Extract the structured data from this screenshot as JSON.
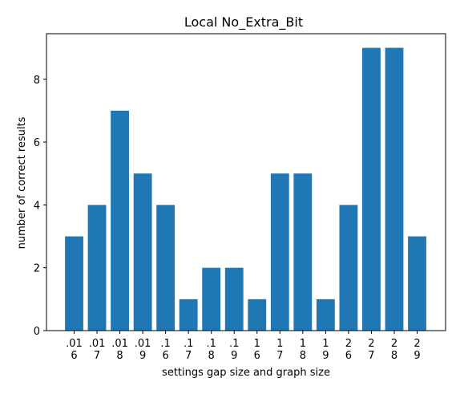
{
  "chart_data": {
    "type": "bar",
    "title": "Local No_Extra_Bit",
    "xlabel": "settings gap size and graph size",
    "ylabel": "number of correct results",
    "categories": [
      [
        ".01",
        "6"
      ],
      [
        ".01",
        "7"
      ],
      [
        ".01",
        "8"
      ],
      [
        ".01",
        "9"
      ],
      [
        ".1",
        "6"
      ],
      [
        ".1",
        "7"
      ],
      [
        ".1",
        "8"
      ],
      [
        ".1",
        "9"
      ],
      [
        "1",
        "6"
      ],
      [
        "1",
        "7"
      ],
      [
        "1",
        "8"
      ],
      [
        "1",
        "9"
      ],
      [
        "2",
        "6"
      ],
      [
        "2",
        "7"
      ],
      [
        "2",
        "8"
      ],
      [
        "2",
        "9"
      ]
    ],
    "values": [
      3,
      4,
      7,
      5,
      4,
      1,
      2,
      2,
      1,
      5,
      5,
      1,
      4,
      9,
      9,
      3
    ],
    "ylim": [
      0,
      9.45
    ],
    "yticks": [
      0,
      2,
      4,
      6,
      8
    ],
    "bar_color": "#1f77b4",
    "grid": false,
    "legend": "none"
  }
}
